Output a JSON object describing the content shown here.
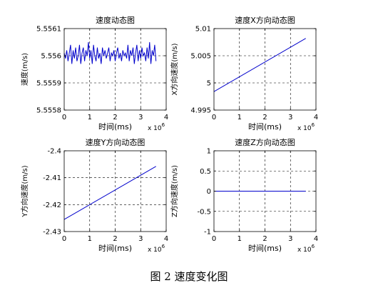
{
  "caption": "图 2  速度变化图",
  "chart_data": [
    {
      "type": "line",
      "title": "速度动态图",
      "xlabel": "时间(ms)",
      "ylabel": "速度(m/s)",
      "x_multiplier": "x 10^6",
      "xlim": [
        0,
        4
      ],
      "ylim": [
        5.5558,
        5.5561
      ],
      "xticks": [
        0,
        1,
        2,
        3,
        4
      ],
      "yticks": [
        5.5558,
        5.5559,
        5.556,
        5.5561
      ],
      "xtick_labels": [
        "0",
        "1",
        "2",
        "3",
        "4"
      ],
      "ytick_labels": [
        "5.5558",
        "5.5559",
        "5.556",
        "5.5561"
      ],
      "grid": true,
      "line_color": "#0000cc",
      "series": [
        {
          "x": [
            0.0,
            0.05,
            0.1,
            0.15,
            0.2,
            0.25,
            0.3,
            0.35,
            0.4,
            0.45,
            0.5,
            0.55,
            0.6,
            0.65,
            0.7,
            0.75,
            0.8,
            0.85,
            0.9,
            0.95,
            1.0,
            1.05,
            1.1,
            1.15,
            1.2,
            1.25,
            1.3,
            1.35,
            1.4,
            1.45,
            1.5,
            1.55,
            1.6,
            1.65,
            1.7,
            1.75,
            1.8,
            1.85,
            1.9,
            1.95,
            2.0,
            2.05,
            2.1,
            2.15,
            2.2,
            2.25,
            2.3,
            2.35,
            2.4,
            2.45,
            2.5,
            2.55,
            2.6,
            2.65,
            2.7,
            2.75,
            2.8,
            2.85,
            2.9,
            2.95,
            3.0,
            3.05,
            3.1,
            3.15,
            3.2,
            3.25,
            3.3,
            3.35,
            3.4,
            3.45,
            3.5,
            3.55,
            3.6
          ],
          "values": [
            5.55601,
            5.55599,
            5.55602,
            5.55598,
            5.55601,
            5.55604,
            5.55597,
            5.55602,
            5.55599,
            5.55603,
            5.55598,
            5.556,
            5.55604,
            5.55597,
            5.55601,
            5.55603,
            5.55598,
            5.55602,
            5.556,
            5.55605,
            5.55599,
            5.55602,
            5.55597,
            5.55604,
            5.556,
            5.55598,
            5.55603,
            5.55599,
            5.55601,
            5.55597,
            5.55603,
            5.556,
            5.55602,
            5.55599,
            5.55601,
            5.55603,
            5.55598,
            5.55601,
            5.556,
            5.55602,
            5.55598,
            5.55601,
            5.55603,
            5.55599,
            5.55601,
            5.55598,
            5.55602,
            5.556,
            5.55601,
            5.55599,
            5.55604,
            5.55598,
            5.55602,
            5.556,
            5.55603,
            5.55597,
            5.55601,
            5.55604,
            5.55598,
            5.55602,
            5.55599,
            5.55603,
            5.556,
            5.55601,
            5.55598,
            5.55603,
            5.55599,
            5.55605,
            5.55597,
            5.55602,
            5.556,
            5.55604,
            5.55598
          ]
        }
      ]
    },
    {
      "type": "line",
      "title": "速度X方向动态图",
      "xlabel": "时间(ms)",
      "ylabel": "X方向速度(m/s)",
      "x_multiplier": "x 10^6",
      "xlim": [
        0,
        4
      ],
      "ylim": [
        4.995,
        5.01
      ],
      "xticks": [
        0,
        1,
        2,
        3,
        4
      ],
      "yticks": [
        4.995,
        5,
        5.005,
        5.01
      ],
      "xtick_labels": [
        "0",
        "1",
        "2",
        "3",
        "4"
      ],
      "ytick_labels": [
        "4.995",
        "5",
        "5.005",
        "5.01"
      ],
      "grid": true,
      "line_color": "#0000cc",
      "series": [
        {
          "x": [
            0,
            3.6
          ],
          "values": [
            4.9984,
            5.0082
          ]
        }
      ]
    },
    {
      "type": "line",
      "title": "速度Y方向动态图",
      "xlabel": "时间(ms)",
      "ylabel": "Y方向速度(m/s)",
      "x_multiplier": "x 10^6",
      "xlim": [
        0,
        4
      ],
      "ylim": [
        -2.43,
        -2.4
      ],
      "xticks": [
        0,
        1,
        2,
        3,
        4
      ],
      "yticks": [
        -2.43,
        -2.42,
        -2.41,
        -2.4
      ],
      "xtick_labels": [
        "0",
        "1",
        "2",
        "3",
        "4"
      ],
      "ytick_labels": [
        "-2.43",
        "-2.42",
        "-2.41",
        "-2.4"
      ],
      "grid": true,
      "line_color": "#0000cc",
      "series": [
        {
          "x": [
            0,
            3.6
          ],
          "values": [
            -2.4255,
            -2.4058
          ]
        }
      ]
    },
    {
      "type": "line",
      "title": "速度Z方向动态图",
      "xlabel": "时间(ms)",
      "ylabel": "Z方向速度(m/s)",
      "x_multiplier": "x 10^6",
      "xlim": [
        0,
        4
      ],
      "ylim": [
        -1,
        1
      ],
      "xticks": [
        0,
        1,
        2,
        3,
        4
      ],
      "yticks": [
        -1,
        -0.5,
        0,
        0.5,
        1
      ],
      "xtick_labels": [
        "0",
        "1",
        "2",
        "3",
        "4"
      ],
      "ytick_labels": [
        "-1",
        "-0.5",
        "0",
        "0.5",
        "1"
      ],
      "grid": true,
      "line_color": "#0000cc",
      "series": [
        {
          "x": [
            0,
            3.6
          ],
          "values": [
            0,
            0
          ]
        }
      ]
    }
  ]
}
